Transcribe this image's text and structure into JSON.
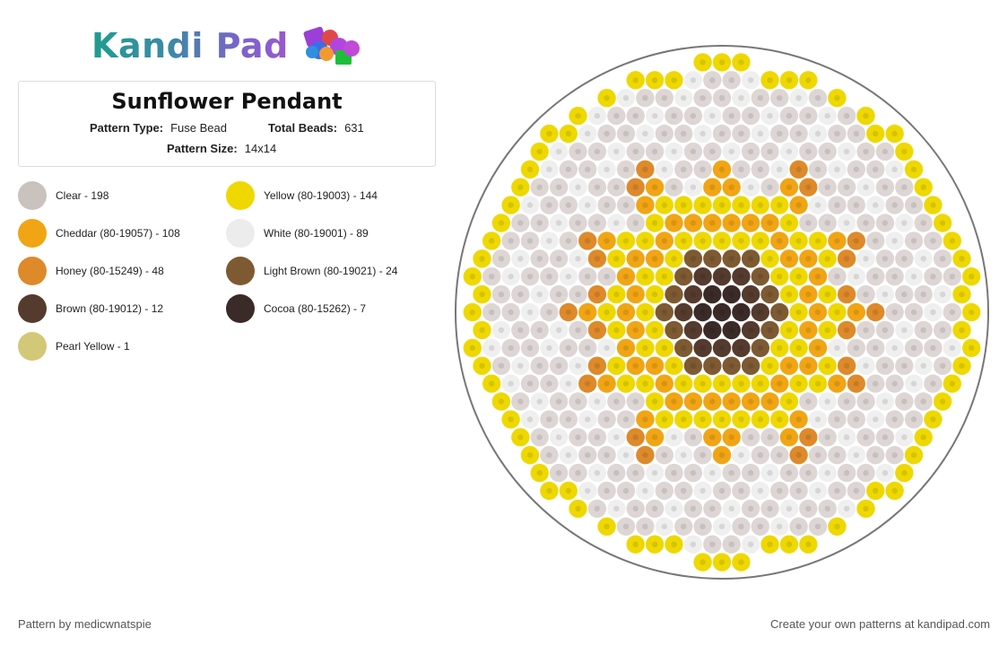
{
  "logo": {
    "text": "Kandi Pad"
  },
  "pattern": {
    "title": "Sunflower Pendant",
    "type_label": "Pattern Type:",
    "type_value": "Fuse Bead",
    "beads_label": "Total Beads:",
    "beads_value": "631",
    "size_label": "Pattern Size:",
    "size_value": "14x14"
  },
  "legend": [
    {
      "label": "Clear - 198",
      "color": "#c9c2bd"
    },
    {
      "label": "Yellow (80-19003) - 144",
      "color": "#eed800"
    },
    {
      "label": "Cheddar (80-19057) - 108",
      "color": "#f1a514"
    },
    {
      "label": "White (80-19001) - 89",
      "color": "#ececec"
    },
    {
      "label": "Honey (80-15249) - 48",
      "color": "#de8a2a"
    },
    {
      "label": "Light Brown (80-19021) - 24",
      "color": "#7e5a33"
    },
    {
      "label": "Brown (80-19012) - 12",
      "color": "#553b2e"
    },
    {
      "label": "Cocoa (80-15262) - 7",
      "color": "#3a2b28"
    },
    {
      "label": "Pearl Yellow - 1",
      "color": "#d3c877"
    }
  ],
  "footer": {
    "left": "Pattern by medicwnatspie",
    "right": "Create your own patterns at kandipad.com"
  }
}
